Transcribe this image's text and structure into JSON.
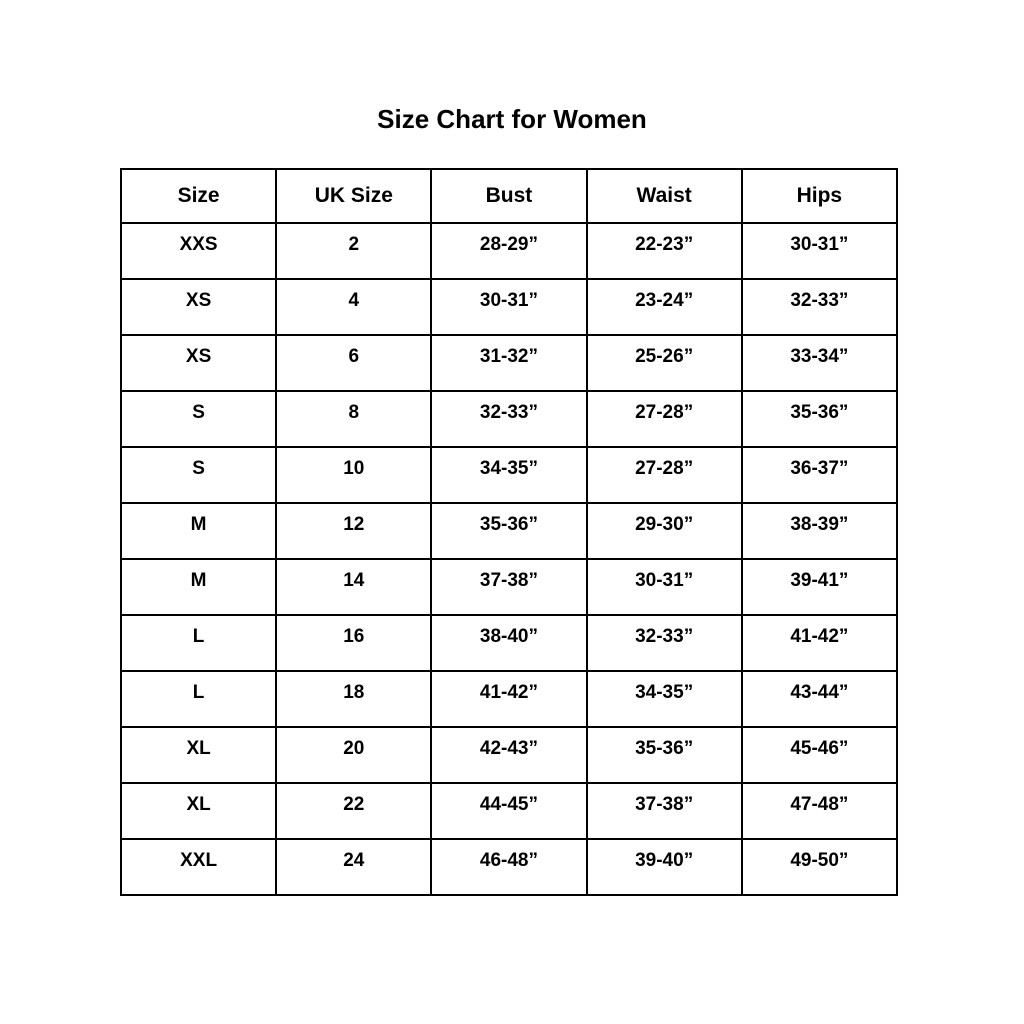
{
  "title": "Size Chart for Women",
  "colors": {
    "background": "#ffffff",
    "text": "#000000",
    "border": "#000000"
  },
  "chart_data": {
    "type": "table",
    "title": "Size Chart for Women",
    "columns": [
      "Size",
      "UK Size",
      "Bust",
      "Waist",
      "Hips"
    ],
    "rows": [
      [
        "XXS",
        "2",
        "28-29”",
        "22-23”",
        "30-31”"
      ],
      [
        "XS",
        "4",
        "30-31”",
        "23-24”",
        "32-33”"
      ],
      [
        "XS",
        "6",
        "31-32”",
        "25-26”",
        "33-34”"
      ],
      [
        "S",
        "8",
        "32-33”",
        "27-28”",
        "35-36”"
      ],
      [
        "S",
        "10",
        "34-35”",
        "27-28”",
        "36-37”"
      ],
      [
        "M",
        "12",
        "35-36”",
        "29-30”",
        "38-39”"
      ],
      [
        "M",
        "14",
        "37-38”",
        "30-31”",
        "39-41”"
      ],
      [
        "L",
        "16",
        "38-40”",
        "32-33”",
        "41-42”"
      ],
      [
        "L",
        "18",
        "41-42”",
        "34-35”",
        "43-44”"
      ],
      [
        "XL",
        "20",
        "42-43”",
        "35-36”",
        "45-46”"
      ],
      [
        "XL",
        "22",
        "44-45”",
        "37-38”",
        "47-48”"
      ],
      [
        "XXL",
        "24",
        "46-48”",
        "39-40”",
        "49-50”"
      ]
    ]
  }
}
